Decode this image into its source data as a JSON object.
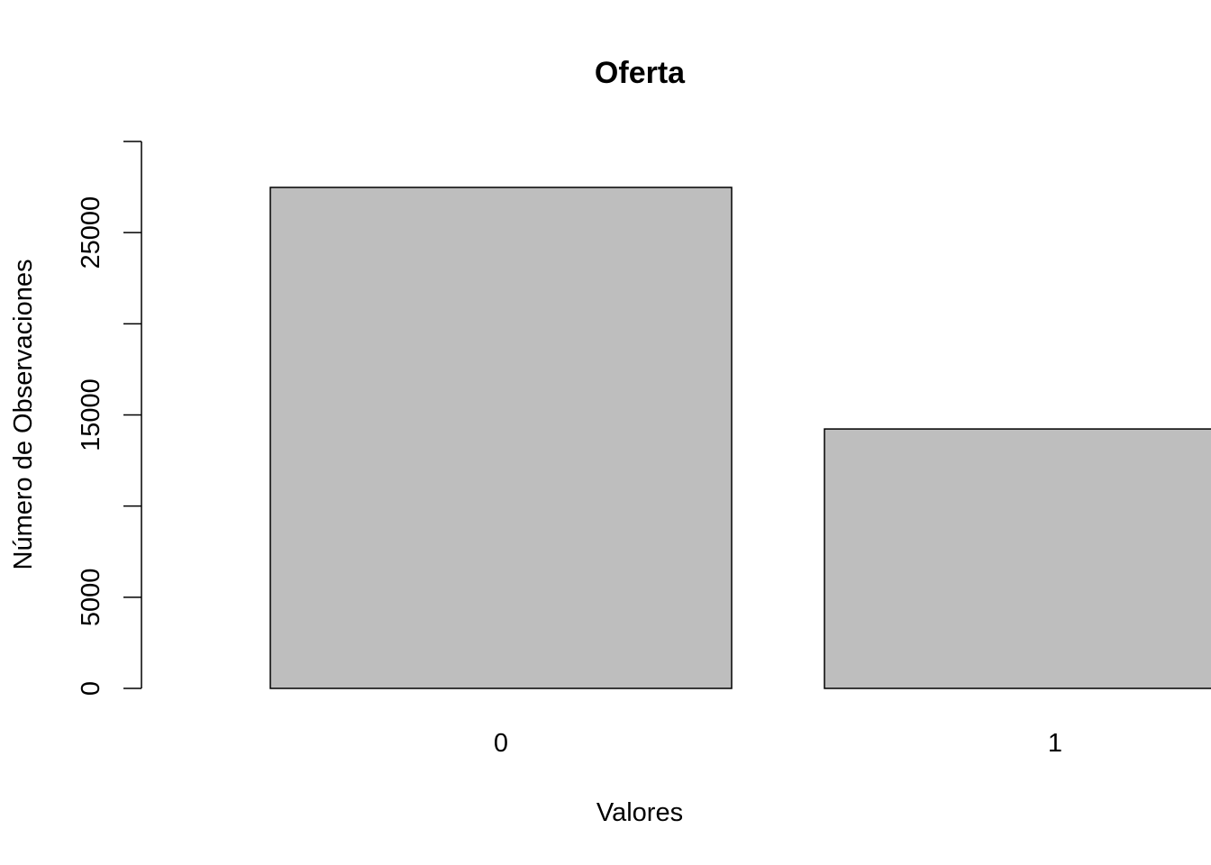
{
  "chart_data": {
    "type": "bar",
    "title": "Oferta",
    "x_label": "Valores",
    "y_label": "Número de Observaciones",
    "categories": [
      "0",
      "1"
    ],
    "values": [
      27480,
      14230
    ],
    "color": "#bebebe",
    "ylim": [
      0,
      30000
    ],
    "yticks": [
      0,
      5000,
      {
        "value": 10000,
        "label": null
      },
      15000,
      {
        "value": 20000,
        "label": null
      },
      25000,
      {
        "value": 30000,
        "label": null
      }
    ]
  }
}
